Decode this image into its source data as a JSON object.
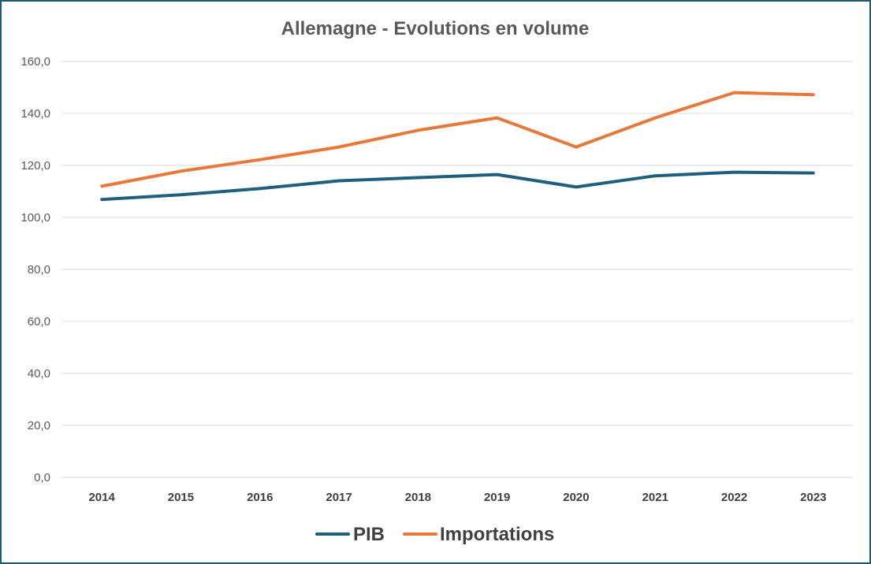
{
  "chart_data": {
    "type": "line",
    "title": "Allemagne - Evolutions en volume",
    "categories": [
      "2014",
      "2015",
      "2016",
      "2017",
      "2018",
      "2019",
      "2020",
      "2021",
      "2022",
      "2023"
    ],
    "series": [
      {
        "name": "PIB",
        "color": "#1f5f7e",
        "values": [
          106.9,
          108.7,
          111.1,
          114.1,
          115.3,
          116.5,
          111.7,
          116.0,
          117.4,
          117.1
        ]
      },
      {
        "name": "Importations",
        "color": "#e8773a",
        "values": [
          112.0,
          117.8,
          122.2,
          127.1,
          133.5,
          138.3,
          127.1,
          138.3,
          148.0,
          147.2
        ]
      }
    ],
    "ylim": [
      0,
      160
    ],
    "yticks": [
      "0,0",
      "20,0",
      "40,0",
      "60,0",
      "80,0",
      "100,0",
      "120,0",
      "140,0",
      "160,0"
    ],
    "grid": true,
    "legend": "bottom",
    "xlabel": "",
    "ylabel": ""
  }
}
